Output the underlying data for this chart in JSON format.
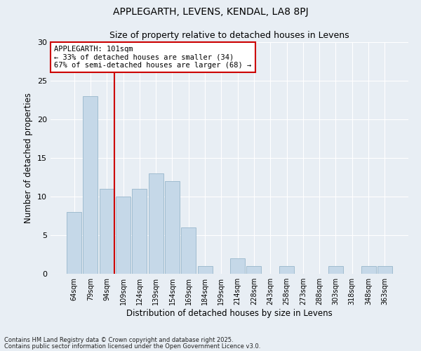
{
  "title1": "APPLEGARTH, LEVENS, KENDAL, LA8 8PJ",
  "title2": "Size of property relative to detached houses in Levens",
  "xlabel": "Distribution of detached houses by size in Levens",
  "ylabel": "Number of detached properties",
  "categories": [
    "64sqm",
    "79sqm",
    "94sqm",
    "109sqm",
    "124sqm",
    "139sqm",
    "154sqm",
    "169sqm",
    "184sqm",
    "199sqm",
    "214sqm",
    "228sqm",
    "243sqm",
    "258sqm",
    "273sqm",
    "288sqm",
    "303sqm",
    "318sqm",
    "348sqm",
    "363sqm"
  ],
  "values": [
    8,
    23,
    11,
    10,
    11,
    13,
    12,
    6,
    1,
    0,
    2,
    1,
    0,
    1,
    0,
    0,
    1,
    0,
    1,
    1
  ],
  "bar_color": "#c5d8e8",
  "bar_edge_color": "#a0bcd0",
  "ylim": [
    0,
    30
  ],
  "yticks": [
    0,
    5,
    10,
    15,
    20,
    25,
    30
  ],
  "vline_color": "#cc0000",
  "annotation_text": "APPLEGARTH: 101sqm\n← 33% of detached houses are smaller (34)\n67% of semi-detached houses are larger (68) →",
  "annotation_box_color": "#ffffff",
  "annotation_box_edge": "#cc0000",
  "background_color": "#e8eef4",
  "footer1": "Contains HM Land Registry data © Crown copyright and database right 2025.",
  "footer2": "Contains public sector information licensed under the Open Government Licence v3.0."
}
